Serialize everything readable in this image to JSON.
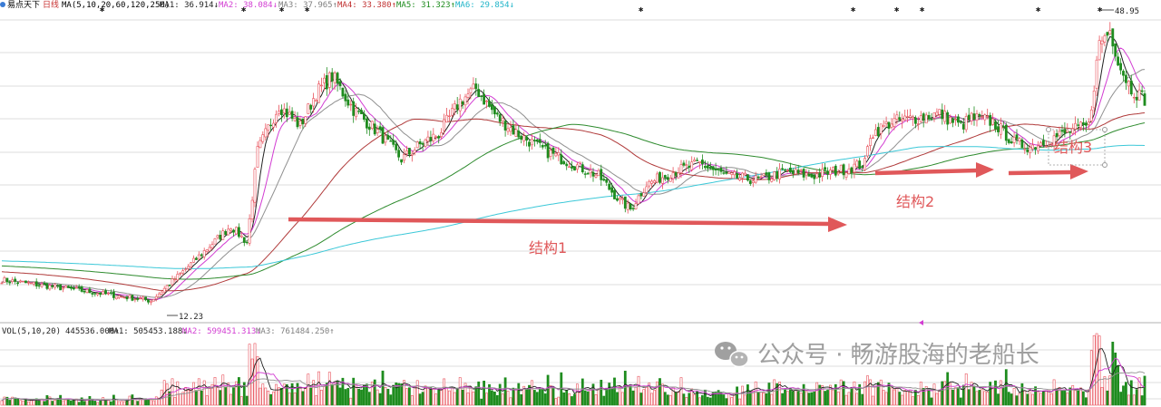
{
  "header": {
    "icon": "target-icon",
    "source": "易点天下",
    "period": "日线",
    "ma_params": "MA(5,10,20,60,120,250)",
    "ma_values": [
      {
        "label": "MA1: 36.914↓",
        "color": "#222222"
      },
      {
        "label": "MA2: 38.084↓",
        "color": "#d23cd2"
      },
      {
        "label": "MA3: 37.965↑",
        "color": "#808080"
      },
      {
        "label": "MA4: 33.380↑",
        "color": "#c03030"
      },
      {
        "label": "MA5: 31.323↑",
        "color": "#1e8c1e"
      },
      {
        "label": "MA6: 29.854↓",
        "color": "#20b4c8"
      }
    ]
  },
  "price_labels": {
    "high": "48.95",
    "low": "12.23"
  },
  "annotations": [
    {
      "text": "结构1"
    },
    {
      "text": "结构2"
    },
    {
      "text": "结构3"
    }
  ],
  "volume_header": {
    "params": "VOL(5,10,20)",
    "vol": "445536.000↑",
    "ma1": "MA1: 505453.188↓",
    "ma2": "MA2: 599451.313↓",
    "ma3": "MA3: 761484.250↑"
  },
  "watermark": {
    "text": "公众号 · 畅游股海的老船长",
    "icon": "wechat-icon"
  },
  "colors": {
    "up": "#e8505a",
    "down": "#1e8c1e",
    "arrow": "#e0585a",
    "ma1": "#222222",
    "ma2": "#d23cd2",
    "ma3": "#909090",
    "ma4": "#b03a3a",
    "ma5": "#2e8b2e",
    "ma6": "#3cc8d8",
    "grid": "#dcdcdc"
  },
  "chart_data": {
    "type": "candlestick",
    "ylim": [
      12.23,
      48.95
    ],
    "anchor_points": [
      [
        0,
        16.5
      ],
      [
        28,
        15.3
      ],
      [
        56,
        14.0
      ],
      [
        68,
        17.5
      ],
      [
        86,
        23.0
      ],
      [
        92,
        21.0
      ],
      [
        96,
        32.0
      ],
      [
        104,
        37.5
      ],
      [
        112,
        35.0
      ],
      [
        118,
        39.0
      ],
      [
        124,
        41.0
      ],
      [
        132,
        37.0
      ],
      [
        142,
        34.0
      ],
      [
        150,
        31.0
      ],
      [
        158,
        33.0
      ],
      [
        164,
        34.0
      ],
      [
        172,
        38.0
      ],
      [
        178,
        39.5
      ],
      [
        186,
        36.0
      ],
      [
        194,
        34.0
      ],
      [
        204,
        32.0
      ],
      [
        214,
        30.5
      ],
      [
        224,
        29.0
      ],
      [
        232,
        26.0
      ],
      [
        236,
        25.0
      ],
      [
        242,
        28.0
      ],
      [
        252,
        29.5
      ],
      [
        262,
        30.5
      ],
      [
        272,
        29.0
      ],
      [
        284,
        28.5
      ],
      [
        294,
        29.5
      ],
      [
        304,
        29.0
      ],
      [
        316,
        29.8
      ],
      [
        324,
        30.5
      ],
      [
        326,
        34.0
      ],
      [
        334,
        35.5
      ],
      [
        344,
        36.0
      ],
      [
        352,
        36.5
      ],
      [
        360,
        35.0
      ],
      [
        364,
        36.0
      ],
      [
        372,
        35.5
      ],
      [
        380,
        33.0
      ],
      [
        386,
        32.5
      ],
      [
        394,
        33.5
      ],
      [
        402,
        34.5
      ],
      [
        408,
        35.0
      ],
      [
        412,
        45.0
      ],
      [
        416,
        46.5
      ],
      [
        420,
        42.0
      ],
      [
        424,
        39.5
      ],
      [
        430,
        38.0
      ]
    ]
  }
}
